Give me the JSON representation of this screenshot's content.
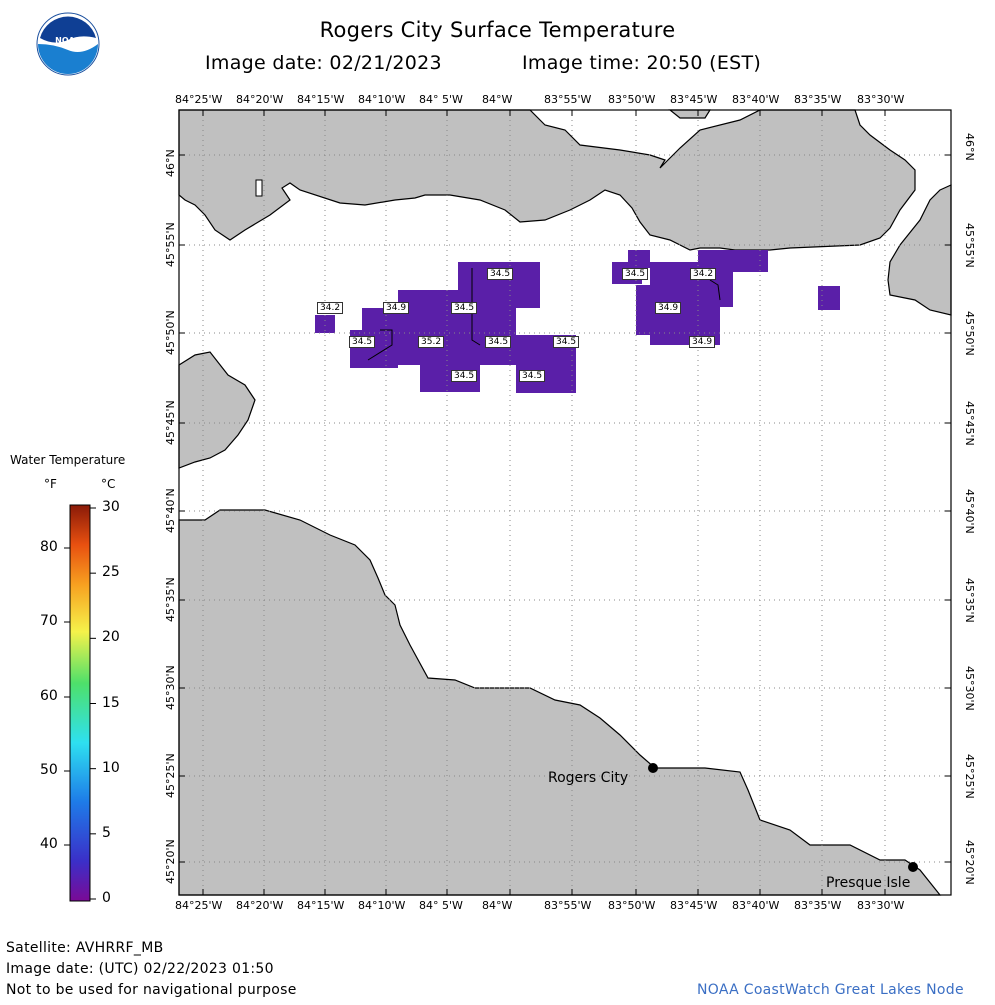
{
  "header": {
    "title": "Rogers City Surface Temperature",
    "image_date": "Image date: 02/21/2023",
    "image_time": "Image time: 20:50 (EST)"
  },
  "logo": {
    "icon": "noaa-logo-icon",
    "text": "NOAA"
  },
  "map": {
    "lon_labels": [
      "84°25'W",
      "84°20'W",
      "84°15'W",
      "84°10'W",
      "84° 5'W",
      "84°W",
      "83°55'W",
      "83°50'W",
      "83°45'W",
      "83°40'W",
      "83°35'W",
      "83°30'W"
    ],
    "lat_labels": [
      "46°N",
      "45°55'N",
      "45°50'N",
      "45°45'N",
      "45°40'N",
      "45°35'N",
      "45°30'N",
      "45°25'N",
      "45°20'N"
    ],
    "cities": [
      {
        "name": "Rogers City"
      },
      {
        "name": "Presque Isle"
      }
    ],
    "value_labels": [
      "34.5",
      "34.5",
      "34.2",
      "34.2",
      "34.9",
      "34.5",
      "34.9",
      "34.5",
      "35.2",
      "34.5",
      "34.5",
      "34.9",
      "34.5",
      "34.5"
    ],
    "colors": {
      "land": "#c0c0c0",
      "water": "#ffffff",
      "pixel": "#5a1fa8",
      "grid": "#000000"
    }
  },
  "legend": {
    "title": "Water Temperature",
    "unit_f": "°F",
    "unit_c": "°C",
    "f_ticks": [
      "80",
      "70",
      "60",
      "50",
      "40"
    ],
    "c_ticks": [
      "30",
      "25",
      "20",
      "15",
      "10",
      "5",
      "0"
    ]
  },
  "footer": {
    "satellite": "Satellite: AVHRRF_MB",
    "utc_date": "Image date: (UTC) 02/22/2023  01:50",
    "warning": "Not to be used for navigational purpose",
    "node": "NOAA CoastWatch Great Lakes Node"
  }
}
